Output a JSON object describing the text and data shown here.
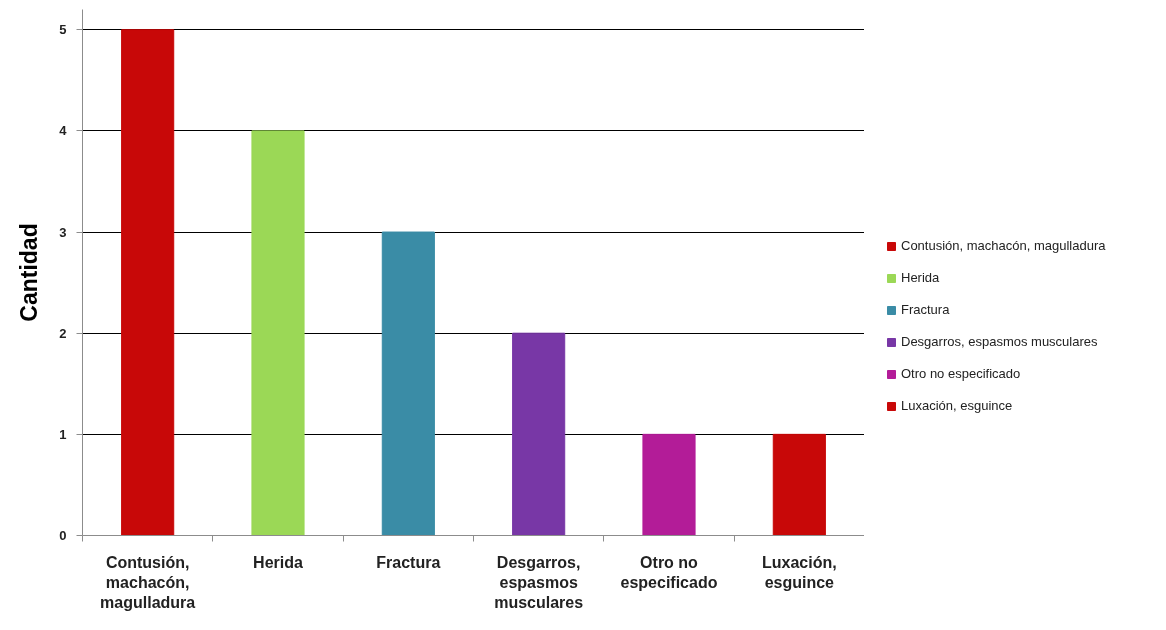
{
  "chart_data": {
    "type": "bar",
    "ylabel": "Cantidad",
    "stacked": true,
    "categories": [
      "Contusión, machacón, magulladura",
      "Herida",
      "Fractura",
      "Desgarros, espasmos musculares",
      "Otro no especificado",
      "Luxación, esguince"
    ],
    "series": [
      {
        "name": "Contusión, machacón, magulladura",
        "color": "#c80808",
        "values": [
          5,
          null,
          null,
          null,
          null,
          null
        ]
      },
      {
        "name": "Herida",
        "color": "#9bd856",
        "values": [
          null,
          4,
          null,
          null,
          null,
          null
        ]
      },
      {
        "name": "Fractura",
        "color": "#3a8ca6",
        "values": [
          null,
          null,
          3,
          null,
          null,
          null
        ]
      },
      {
        "name": "Desgarros, espasmos musculares",
        "color": "#7837a6",
        "values": [
          null,
          null,
          null,
          2,
          null,
          null
        ]
      },
      {
        "name": "Otro no especificado",
        "color": "#b31c98",
        "values": [
          null,
          null,
          null,
          null,
          1,
          null
        ]
      },
      {
        "name": "Luxación, esguince",
        "color": "#c80808",
        "values": [
          null,
          null,
          null,
          null,
          null,
          1
        ]
      }
    ],
    "ylim": [
      0,
      5.2
    ],
    "yticks": [
      0,
      1,
      2,
      3,
      4,
      5
    ],
    "grid": "y",
    "legend": "right"
  }
}
